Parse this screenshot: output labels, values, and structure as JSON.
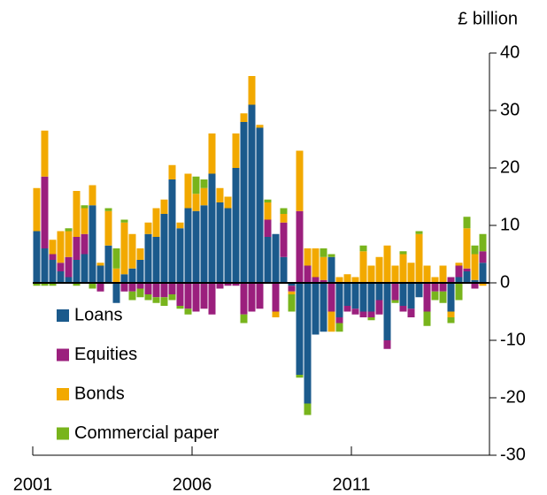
{
  "chart_data": {
    "type": "bar",
    "stacked": true,
    "y_unit_label": "£ billion",
    "categories": [
      "2001",
      null,
      null,
      null,
      null,
      null,
      null,
      null,
      null,
      null,
      null,
      null,
      null,
      null,
      null,
      null,
      null,
      null,
      null,
      null,
      "2006",
      null,
      null,
      null,
      null,
      null,
      null,
      null,
      null,
      null,
      null,
      null,
      null,
      null,
      null,
      null,
      null,
      null,
      null,
      null,
      "2011",
      null,
      null,
      null,
      null,
      null,
      null,
      null,
      null,
      null,
      null,
      null,
      null,
      null,
      null,
      null,
      null
    ],
    "series": [
      {
        "name": "Loans",
        "color": "#1b5a8c",
        "values": [
          9,
          6,
          4,
          2,
          1,
          4,
          5,
          13.5,
          3,
          6.5,
          -3.5,
          1.5,
          2.5,
          4,
          8.5,
          8,
          12,
          18,
          9.5,
          13,
          12.5,
          13.5,
          19,
          14,
          13,
          20,
          28,
          31,
          27,
          8,
          8.5,
          4.5,
          -0.5,
          -16,
          -21,
          -9,
          -8.5,
          4.5,
          -6,
          -4,
          -4.5,
          -5,
          -5,
          -3,
          -10,
          0,
          -4,
          -4.5,
          -2.5,
          0,
          0,
          0,
          -5,
          1,
          2,
          0.5,
          3.5
        ]
      },
      {
        "name": "Equities",
        "color": "#9b1f7d",
        "values": [
          0,
          12.5,
          1,
          1.5,
          3.5,
          4,
          3.5,
          0,
          -1.5,
          0,
          0,
          -1.5,
          -1.5,
          -1,
          -2,
          -2.5,
          -2.5,
          -2,
          -4,
          -4.5,
          -5,
          -4.5,
          -5.5,
          -1,
          -0.5,
          -0.5,
          -5.5,
          -5,
          -4.5,
          3,
          -5,
          6,
          -1,
          12.5,
          3,
          1,
          0.5,
          -5,
          -1,
          -1,
          -1,
          -1,
          -1,
          -2.5,
          -1.5,
          -3,
          -1,
          -1.5,
          0,
          -5,
          -1.5,
          -1.5,
          1,
          2,
          0.5,
          -1,
          2
        ]
      },
      {
        "name": "Bonds",
        "color": "#f2a900",
        "values": [
          7.5,
          8,
          2.5,
          5.5,
          4.5,
          8,
          4.5,
          3.5,
          0.5,
          6,
          2.5,
          9,
          6,
          2,
          2,
          5,
          2.5,
          2.5,
          1,
          6,
          3,
          3,
          7,
          2.5,
          2,
          6,
          1.5,
          5,
          0.5,
          3,
          -1,
          1.5,
          -0.5,
          10.5,
          3,
          5,
          4,
          -3.5,
          1,
          1.5,
          1,
          5.5,
          3,
          4.5,
          6.5,
          3,
          5,
          3.5,
          8.5,
          3,
          1,
          3,
          -1,
          0.5,
          7,
          4.5,
          -0.5
        ]
      },
      {
        "name": "Commercial paper",
        "color": "#78b41c",
        "values": [
          -0.5,
          -0.5,
          -0.5,
          0,
          0.5,
          -0.5,
          0.5,
          -1,
          0,
          0.5,
          3.5,
          0.5,
          -1.5,
          -1.5,
          -1,
          -1,
          -1.5,
          -1,
          -0.5,
          -1,
          3,
          1.5,
          0,
          0,
          0,
          0,
          -1.5,
          0,
          0,
          0.5,
          0,
          1,
          -3,
          -0.5,
          -2,
          0,
          1.5,
          0.5,
          -1.5,
          0,
          0,
          1,
          -0.5,
          0,
          0,
          -0.5,
          0.5,
          0,
          0.5,
          -2.5,
          -1.5,
          -2,
          -1,
          -3,
          2,
          1.5,
          3
        ]
      }
    ],
    "ylim": [
      -30,
      40
    ],
    "yticks": [
      -30,
      -20,
      -10,
      0,
      10,
      20,
      30,
      40
    ]
  }
}
